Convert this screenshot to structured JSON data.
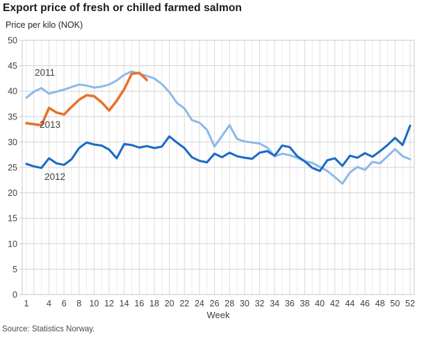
{
  "header": {
    "title": "Export price of fresh or chilled farmed salmon",
    "subtitle": "Price per kilo (NOK)"
  },
  "footer": {
    "source": "Source: Statistics Norway."
  },
  "style": {
    "grid_minor": "#ebebeb",
    "grid_major": "#d9d9d9",
    "grid_horizontal": "#d2d2d2",
    "plot_border": "#c8c8c8",
    "axis_text": "#3f3f3f",
    "title_text": "#1a1a1a",
    "source_text": "#4a4a4a"
  },
  "chart_data": {
    "type": "line",
    "title": "Export price of fresh or chilled farmed salmon",
    "ylabel": "Price per kilo (NOK)",
    "xlabel": "Week",
    "x_unit": "week",
    "ylim": [
      0,
      50
    ],
    "xlim": [
      1,
      52
    ],
    "yticks": [
      0,
      5,
      10,
      15,
      20,
      25,
      30,
      35,
      40,
      45,
      50
    ],
    "xticks": [
      1,
      4,
      6,
      8,
      10,
      12,
      14,
      16,
      18,
      20,
      22,
      24,
      26,
      28,
      30,
      32,
      34,
      36,
      38,
      40,
      42,
      44,
      46,
      48,
      50,
      52
    ],
    "grid": true,
    "legend_position": "inline-annotations",
    "series": [
      {
        "name": "2011",
        "color": "#8CB9E7",
        "x_start": 1,
        "values": [
          38.7,
          39.9,
          40.6,
          39.5,
          39.9,
          40.3,
          40.8,
          41.3,
          41.1,
          40.7,
          40.9,
          41.3,
          42.1,
          43.2,
          43.9,
          43.4,
          43.0,
          42.5,
          41.4,
          39.8,
          37.7,
          36.6,
          34.3,
          33.8,
          32.4,
          29.1,
          31.2,
          33.3,
          30.6,
          30.1,
          29.9,
          29.7,
          28.9,
          27.2,
          27.7,
          27.4,
          26.9,
          26.2,
          25.9,
          25.1,
          24.3,
          23.1,
          21.8,
          24.0,
          25.1,
          24.5,
          26.1,
          25.8,
          27.2,
          28.6,
          27.2,
          26.6
        ]
      },
      {
        "name": "2012",
        "color": "#1B6CC4",
        "x_start": 1,
        "values": [
          25.7,
          25.2,
          24.9,
          26.8,
          25.8,
          25.5,
          26.6,
          28.8,
          29.9,
          29.5,
          29.3,
          28.5,
          26.8,
          29.6,
          29.4,
          28.9,
          29.2,
          28.8,
          29.1,
          31.1,
          29.9,
          28.8,
          27.0,
          26.3,
          26.0,
          27.7,
          27.0,
          27.9,
          27.2,
          26.9,
          26.7,
          27.9,
          28.2,
          27.3,
          29.3,
          29.0,
          27.2,
          26.2,
          24.9,
          24.3,
          26.4,
          26.8,
          25.3,
          27.3,
          26.9,
          27.8,
          27.1,
          28.2,
          29.4,
          30.8,
          29.4,
          33.2
        ]
      },
      {
        "name": "2013",
        "color": "#E8732C",
        "x_start": 1,
        "values": [
          33.7,
          33.5,
          33.3,
          36.7,
          35.8,
          35.4,
          36.9,
          38.3,
          39.2,
          39.0,
          37.8,
          36.2,
          38.1,
          40.4,
          43.4,
          43.6,
          42.2
        ]
      }
    ],
    "annotations": [
      {
        "text": "2011",
        "week": 3.7,
        "value": 43.7
      },
      {
        "text": "2013",
        "week": 4.3,
        "value": 33.5
      },
      {
        "text": "2012",
        "week": 5.0,
        "value": 23.2
      }
    ]
  }
}
